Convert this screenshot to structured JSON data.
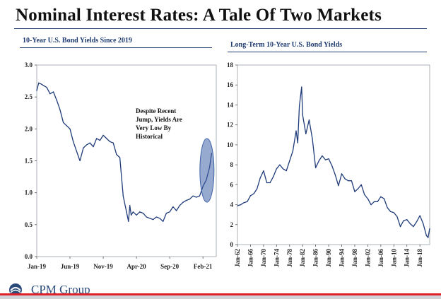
{
  "slide_title": "Nominal Interest Rates: A Tale Of Two Markets",
  "logo_label": "CPM Group",
  "colors": {
    "series": "#1f3b7a",
    "accent": "#1f3b6f",
    "ellipse": "#3f63a8",
    "red": "#e0202a"
  },
  "chart_data": [
    {
      "type": "line",
      "title": "10-Year U.S. Bond Yields Since 2019",
      "ylim": [
        0,
        3
      ],
      "yticks": [
        "0.0",
        "0.5",
        "1.0",
        "1.5",
        "2.0",
        "2.5",
        "3.0"
      ],
      "ytick_values": [
        0,
        0.5,
        1,
        1.5,
        2,
        2.5,
        3
      ],
      "xlim": [
        0,
        27
      ],
      "xticks": [
        "Jan-19",
        "Jun-19",
        "Nov-19",
        "Apr-20",
        "Sep-20",
        "Feb-21"
      ],
      "xtick_positions": [
        0,
        5,
        10,
        15,
        20,
        25
      ],
      "annotation": "Despite Recent Jump, Yields Are Very Low By Historical",
      "annotation_lines": [
        "Despite Recent",
        "Jump, Yields Are",
        "Very Low By",
        "Historical"
      ],
      "series": [
        {
          "x": [
            0,
            0.3,
            0.7,
            1,
            1.5,
            2,
            2.5,
            3,
            3.5,
            4,
            4.5,
            5,
            5.5,
            6,
            6.5,
            7,
            7.5,
            8,
            8.5,
            9,
            9.5,
            10,
            10.5,
            11,
            11.5,
            12,
            12.5,
            13,
            13.5,
            13.8,
            14,
            14.2,
            14.5,
            15,
            15.5,
            16,
            16.5,
            17,
            17.5,
            18,
            18.5,
            19,
            19.5,
            20,
            20.5,
            21,
            21.5,
            22,
            22.5,
            23,
            23.5,
            24,
            24.5,
            25,
            25.5,
            26,
            26.3
          ],
          "y": [
            2.6,
            2.72,
            2.7,
            2.68,
            2.65,
            2.55,
            2.58,
            2.45,
            2.3,
            2.1,
            2.05,
            2.0,
            1.8,
            1.65,
            1.5,
            1.7,
            1.75,
            1.78,
            1.72,
            1.85,
            1.82,
            1.9,
            1.85,
            1.8,
            1.78,
            1.6,
            1.55,
            0.95,
            0.7,
            0.55,
            0.8,
            0.65,
            0.7,
            0.65,
            0.7,
            0.68,
            0.62,
            0.6,
            0.58,
            0.62,
            0.6,
            0.55,
            0.68,
            0.7,
            0.78,
            0.72,
            0.8,
            0.85,
            0.88,
            0.9,
            0.95,
            0.93,
            0.95,
            1.1,
            1.2,
            1.4,
            1.62
          ]
        }
      ]
    },
    {
      "type": "line",
      "title": "Long-Term 10-Year U.S. Bond Yields",
      "ylim": [
        0,
        18
      ],
      "yticks": [
        "0",
        "2",
        "4",
        "6",
        "8",
        "10",
        "12",
        "14",
        "16",
        "18"
      ],
      "ytick_values": [
        0,
        2,
        4,
        6,
        8,
        10,
        12,
        14,
        16,
        18
      ],
      "xlim": [
        1962,
        2021
      ],
      "xticks": [
        "Jan-62",
        "Jan-66",
        "Jan-70",
        "Jan-74",
        "Jan-78",
        "Jan-82",
        "Jan-86",
        "Jan-90",
        "Jan-94",
        "Jan-98",
        "Jan-02",
        "Jan-06",
        "Jan-10",
        "Jan-14",
        "Jan-18"
      ],
      "xtick_positions": [
        1962,
        1966,
        1970,
        1974,
        1978,
        1982,
        1986,
        1990,
        1994,
        1998,
        2002,
        2006,
        2010,
        2014,
        2018
      ],
      "series": [
        {
          "x": [
            1962,
            1963,
            1964,
            1965,
            1966,
            1967,
            1968,
            1969,
            1970,
            1971,
            1972,
            1973,
            1974,
            1975,
            1976,
            1977,
            1978,
            1979,
            1980,
            1980.5,
            1981,
            1981.7,
            1982,
            1983,
            1984,
            1985,
            1986,
            1987,
            1988,
            1989,
            1990,
            1991,
            1992,
            1993,
            1994,
            1995,
            1996,
            1997,
            1998,
            1999,
            2000,
            2001,
            2002,
            2003,
            2004,
            2005,
            2006,
            2007,
            2008,
            2009,
            2010,
            2011,
            2012,
            2013,
            2014,
            2015,
            2016,
            2017,
            2018,
            2019,
            2020,
            2020.5,
            2021
          ],
          "y": [
            3.9,
            4.0,
            4.2,
            4.3,
            4.9,
            5.1,
            5.6,
            6.7,
            7.4,
            6.2,
            6.2,
            6.8,
            7.6,
            8.0,
            7.6,
            7.4,
            8.4,
            9.4,
            11.4,
            10.2,
            13.9,
            15.8,
            13.0,
            11.1,
            12.5,
            10.6,
            7.7,
            8.4,
            8.9,
            8.5,
            8.6,
            7.9,
            7.0,
            5.9,
            7.1,
            6.6,
            6.4,
            6.4,
            5.3,
            5.6,
            6.0,
            5.0,
            4.6,
            4.0,
            4.3,
            4.3,
            4.8,
            4.6,
            3.7,
            3.3,
            3.2,
            2.8,
            1.8,
            2.4,
            2.5,
            2.1,
            1.8,
            2.3,
            2.9,
            2.1,
            0.9,
            0.7,
            1.6
          ]
        }
      ]
    }
  ]
}
